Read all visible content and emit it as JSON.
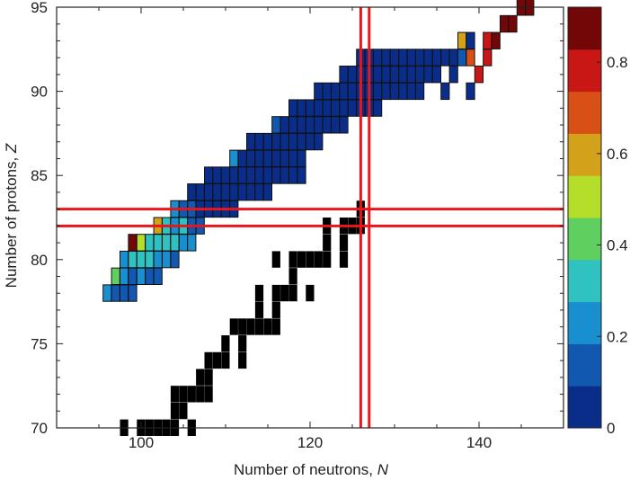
{
  "chart_data": {
    "type": "heatmap",
    "xlabel": "Number of neutrons, ",
    "xlabel_var": "N",
    "ylabel": "Number of protons, ",
    "ylabel_var": "Z",
    "xlim": [
      90,
      150
    ],
    "ylim": [
      70,
      95
    ],
    "x_ticks": [
      100,
      120,
      140
    ],
    "y_ticks": [
      70,
      75,
      80,
      85,
      90,
      95
    ],
    "colorbar": {
      "range": [
        0,
        0.92
      ],
      "ticks": [
        0,
        0.2,
        0.4,
        0.6,
        0.8
      ],
      "colors": [
        "#0a2d8a",
        "#1257b0",
        "#1a8fd0",
        "#2fc2c0",
        "#5fcf5f",
        "#b5de2b",
        "#d4a11a",
        "#d95016",
        "#c81714",
        "#730707"
      ]
    },
    "lines": {
      "Z": [
        82,
        83
      ],
      "N": [
        126,
        127
      ]
    },
    "nuclei": [
      {
        "z": 78,
        "n": [
          [
            96,
            0.2
          ],
          [
            97,
            0.15
          ],
          [
            98,
            0.12
          ],
          [
            99,
            0.1
          ]
        ]
      },
      {
        "z": 79,
        "n": [
          [
            97,
            0.45
          ],
          [
            98,
            0.2
          ],
          [
            99,
            0.15
          ],
          [
            100,
            0.25
          ],
          [
            101,
            0.12
          ],
          [
            102,
            0.1
          ]
        ]
      },
      {
        "z": 80,
        "n": [
          [
            98,
            0.25
          ],
          [
            99,
            0.3
          ],
          [
            100,
            0.35
          ],
          [
            101,
            0.3
          ],
          [
            102,
            0.25
          ],
          [
            103,
            0.2
          ],
          [
            104,
            0.12
          ]
        ]
      },
      {
        "z": 81,
        "n": [
          [
            99,
            0.85
          ],
          [
            100,
            0.5
          ],
          [
            101,
            0.3
          ],
          [
            102,
            0.32
          ],
          [
            103,
            0.3
          ],
          [
            104,
            0.3
          ],
          [
            105,
            0.22
          ],
          [
            106,
            0.2
          ]
        ]
      },
      {
        "z": 82,
        "n": [
          [
            102,
            0.6
          ],
          [
            103,
            0.3
          ],
          [
            104,
            0.25
          ],
          [
            105,
            0.3
          ],
          [
            106,
            0.12
          ],
          [
            107,
            0.1
          ]
        ]
      },
      {
        "z": 83,
        "n": [
          [
            104,
            0.2
          ],
          [
            105,
            0.15
          ],
          [
            106,
            0.1
          ],
          [
            107,
            0.05
          ],
          [
            108,
            0.05
          ],
          [
            109,
            0.05
          ],
          [
            110,
            0.05
          ],
          [
            111,
            0.05
          ]
        ]
      },
      {
        "z": 84,
        "n": [
          [
            106,
            0.05
          ],
          [
            107,
            0.05
          ],
          [
            108,
            0.05
          ],
          [
            109,
            0.05
          ],
          [
            110,
            0.05
          ],
          [
            111,
            0.05
          ],
          [
            112,
            0.05
          ],
          [
            113,
            0.05
          ],
          [
            114,
            0.05
          ],
          [
            115,
            0.05
          ]
        ]
      },
      {
        "z": 85,
        "n": [
          [
            108,
            0.05
          ],
          [
            109,
            0.05
          ],
          [
            110,
            0.05
          ],
          [
            111,
            0.05
          ],
          [
            112,
            0.05
          ],
          [
            113,
            0.05
          ],
          [
            114,
            0.05
          ],
          [
            115,
            0.05
          ],
          [
            116,
            0.05
          ],
          [
            117,
            0.05
          ],
          [
            118,
            0.05
          ],
          [
            119,
            0.05
          ]
        ]
      },
      {
        "z": 86,
        "n": [
          [
            111,
            0.25
          ],
          [
            112,
            0.05
          ],
          [
            113,
            0.05
          ],
          [
            114,
            0.05
          ],
          [
            115,
            0.05
          ],
          [
            116,
            0.05
          ],
          [
            117,
            0.05
          ],
          [
            118,
            0.05
          ],
          [
            119,
            0.05
          ]
        ]
      },
      {
        "z": 87,
        "n": [
          [
            113,
            0.05
          ],
          [
            114,
            0.05
          ],
          [
            115,
            0.05
          ],
          [
            116,
            0.05
          ],
          [
            117,
            0.05
          ],
          [
            118,
            0.05
          ],
          [
            119,
            0.05
          ],
          [
            120,
            0.05
          ],
          [
            121,
            0.05
          ]
        ]
      },
      {
        "z": 88,
        "n": [
          [
            116,
            0.15
          ],
          [
            117,
            0.05
          ],
          [
            118,
            0.05
          ],
          [
            119,
            0.05
          ],
          [
            120,
            0.05
          ],
          [
            121,
            0.05
          ],
          [
            122,
            0.05
          ],
          [
            123,
            0.05
          ],
          [
            124,
            0.05
          ]
        ]
      },
      {
        "z": 89,
        "n": [
          [
            118,
            0.05
          ],
          [
            119,
            0.05
          ],
          [
            120,
            0.05
          ],
          [
            121,
            0.05
          ],
          [
            122,
            0.05
          ],
          [
            123,
            0.05
          ],
          [
            124,
            0.05
          ],
          [
            125,
            0.05
          ],
          [
            126,
            0.05
          ],
          [
            127,
            0.05
          ],
          [
            128,
            0.05
          ]
        ]
      },
      {
        "z": 90,
        "n": [
          [
            121,
            0.05
          ],
          [
            122,
            0.05
          ],
          [
            123,
            0.05
          ],
          [
            124,
            0.05
          ],
          [
            125,
            0.05
          ],
          [
            126,
            0.05
          ],
          [
            127,
            0.05
          ],
          [
            128,
            0.05
          ],
          [
            129,
            0.05
          ],
          [
            130,
            0.05
          ],
          [
            131,
            0.05
          ],
          [
            132,
            0.05
          ],
          [
            133,
            0.05
          ],
          [
            136,
            0.05
          ],
          [
            139,
            0.05
          ]
        ]
      },
      {
        "z": 91,
        "n": [
          [
            124,
            0.05
          ],
          [
            125,
            0.05
          ],
          [
            126,
            0.05
          ],
          [
            127,
            0.05
          ],
          [
            128,
            0.05
          ],
          [
            129,
            0.05
          ],
          [
            130,
            0.05
          ],
          [
            131,
            0.05
          ],
          [
            132,
            0.05
          ],
          [
            133,
            0.05
          ],
          [
            134,
            0.05
          ],
          [
            135,
            0.05
          ],
          [
            137,
            0.05
          ],
          [
            140,
            0.8
          ]
        ]
      },
      {
        "z": 92,
        "n": [
          [
            126,
            0.05
          ],
          [
            127,
            0.05
          ],
          [
            128,
            0.05
          ],
          [
            129,
            0.05
          ],
          [
            130,
            0.05
          ],
          [
            131,
            0.05
          ],
          [
            132,
            0.05
          ],
          [
            133,
            0.05
          ],
          [
            134,
            0.05
          ],
          [
            135,
            0.05
          ],
          [
            136,
            0.05
          ],
          [
            137,
            0.05
          ],
          [
            138,
            0.1
          ],
          [
            139,
            0.7
          ],
          [
            141,
            0.8
          ]
        ]
      },
      {
        "z": 93,
        "n": [
          [
            138,
            0.6
          ],
          [
            139,
            0.05
          ],
          [
            141,
            0.8
          ],
          [
            142,
            0.9
          ]
        ]
      },
      {
        "z": 94,
        "n": [
          [
            143,
            0.9
          ],
          [
            144,
            0.9
          ]
        ]
      },
      {
        "z": 95,
        "n": [
          [
            145,
            0.9
          ],
          [
            146,
            0.9
          ]
        ]
      }
    ],
    "stable_nuclei": [
      {
        "z": 70,
        "n": [
          98,
          100,
          101,
          102,
          103,
          104,
          106
        ]
      },
      {
        "z": 71,
        "n": [
          104,
          105
        ]
      },
      {
        "z": 72,
        "n": [
          104,
          105,
          106,
          107,
          108
        ]
      },
      {
        "z": 73,
        "n": [
          107,
          108
        ]
      },
      {
        "z": 74,
        "n": [
          108,
          109,
          110,
          112
        ]
      },
      {
        "z": 75,
        "n": [
          110,
          112
        ]
      },
      {
        "z": 76,
        "n": [
          111,
          112,
          113,
          114,
          115,
          116
        ]
      },
      {
        "z": 77,
        "n": [
          114,
          116
        ]
      },
      {
        "z": 78,
        "n": [
          114,
          116,
          117,
          118,
          120
        ]
      },
      {
        "z": 79,
        "n": [
          118
        ]
      },
      {
        "z": 80,
        "n": [
          116,
          118,
          119,
          120,
          121,
          122,
          124
        ]
      },
      {
        "z": 81,
        "n": [
          122,
          124
        ]
      },
      {
        "z": 82,
        "n": [
          122,
          124,
          125,
          126
        ]
      },
      {
        "z": 83,
        "n": [
          126
        ]
      }
    ]
  }
}
